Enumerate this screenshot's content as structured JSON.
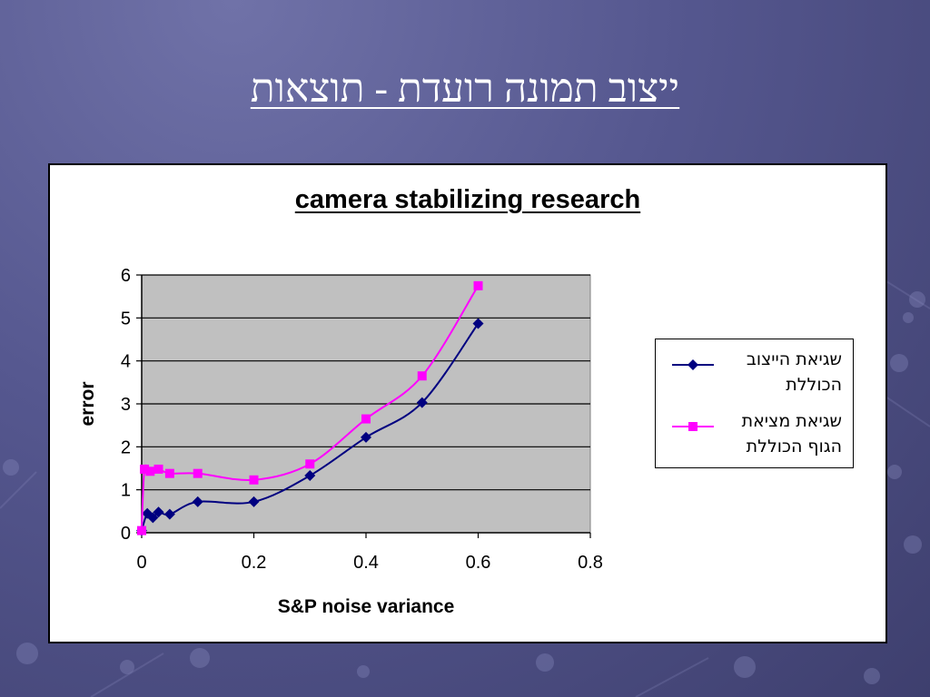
{
  "slide": {
    "title": "ייצוב תמונה רועדת - תוצאות"
  },
  "chart_data": {
    "type": "line",
    "title": "camera stabilizing research",
    "xlabel": "S&P noise variance",
    "ylabel": "error",
    "xlim": [
      0,
      0.8
    ],
    "ylim": [
      0,
      6
    ],
    "xticks": [
      0,
      0.2,
      0.4,
      0.6,
      0.8
    ],
    "yticks": [
      0,
      1,
      2,
      3,
      4,
      5,
      6
    ],
    "grid": "horizontal",
    "legend_position": "right",
    "plot_background": "#c0c0c0",
    "series": [
      {
        "name": "שגיאת הייצוב הכוללת",
        "color": "#000080",
        "marker": "diamond",
        "x": [
          0,
          0.01,
          0.02,
          0.03,
          0.05,
          0.1,
          0.2,
          0.3,
          0.4,
          0.5,
          0.6
        ],
        "y": [
          0.05,
          0.45,
          0.35,
          0.48,
          0.43,
          0.72,
          0.72,
          1.33,
          2.22,
          3.03,
          4.87
        ]
      },
      {
        "name": "שגיאת מציאת הגוף הכוללת",
        "color": "#ff00ff",
        "marker": "square",
        "x": [
          0,
          0.005,
          0.015,
          0.03,
          0.05,
          0.1,
          0.2,
          0.3,
          0.4,
          0.5,
          0.6
        ],
        "y": [
          0.05,
          1.48,
          1.43,
          1.48,
          1.38,
          1.38,
          1.23,
          1.6,
          2.65,
          3.65,
          5.75
        ]
      }
    ]
  }
}
